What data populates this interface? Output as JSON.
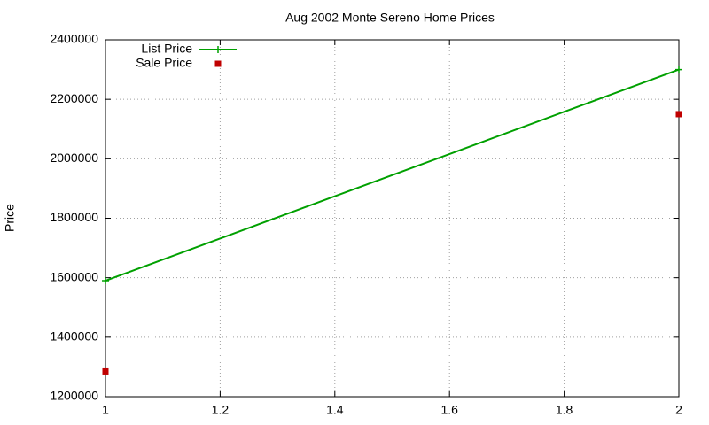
{
  "chart_data": {
    "type": "line",
    "title": "Aug 2002 Monte Sereno Home Prices",
    "y_label": "Price",
    "x": [
      1,
      2
    ],
    "series": [
      {
        "name": "List Price",
        "color": "#00a000",
        "mode": "linespoints",
        "values": [
          1590000,
          2300000
        ]
      },
      {
        "name": "Sale Price",
        "color": "#c00000",
        "mode": "points",
        "values": [
          1285000,
          2150000
        ]
      }
    ],
    "xlim": [
      1,
      2
    ],
    "xticks": [
      1,
      1.2,
      1.4,
      1.6,
      1.8,
      2
    ],
    "ylim": [
      1200000,
      2400000
    ],
    "yticks": [
      1200000,
      1400000,
      1600000,
      1800000,
      2000000,
      2200000,
      2400000
    ],
    "grid": true,
    "legend": "top-left"
  }
}
